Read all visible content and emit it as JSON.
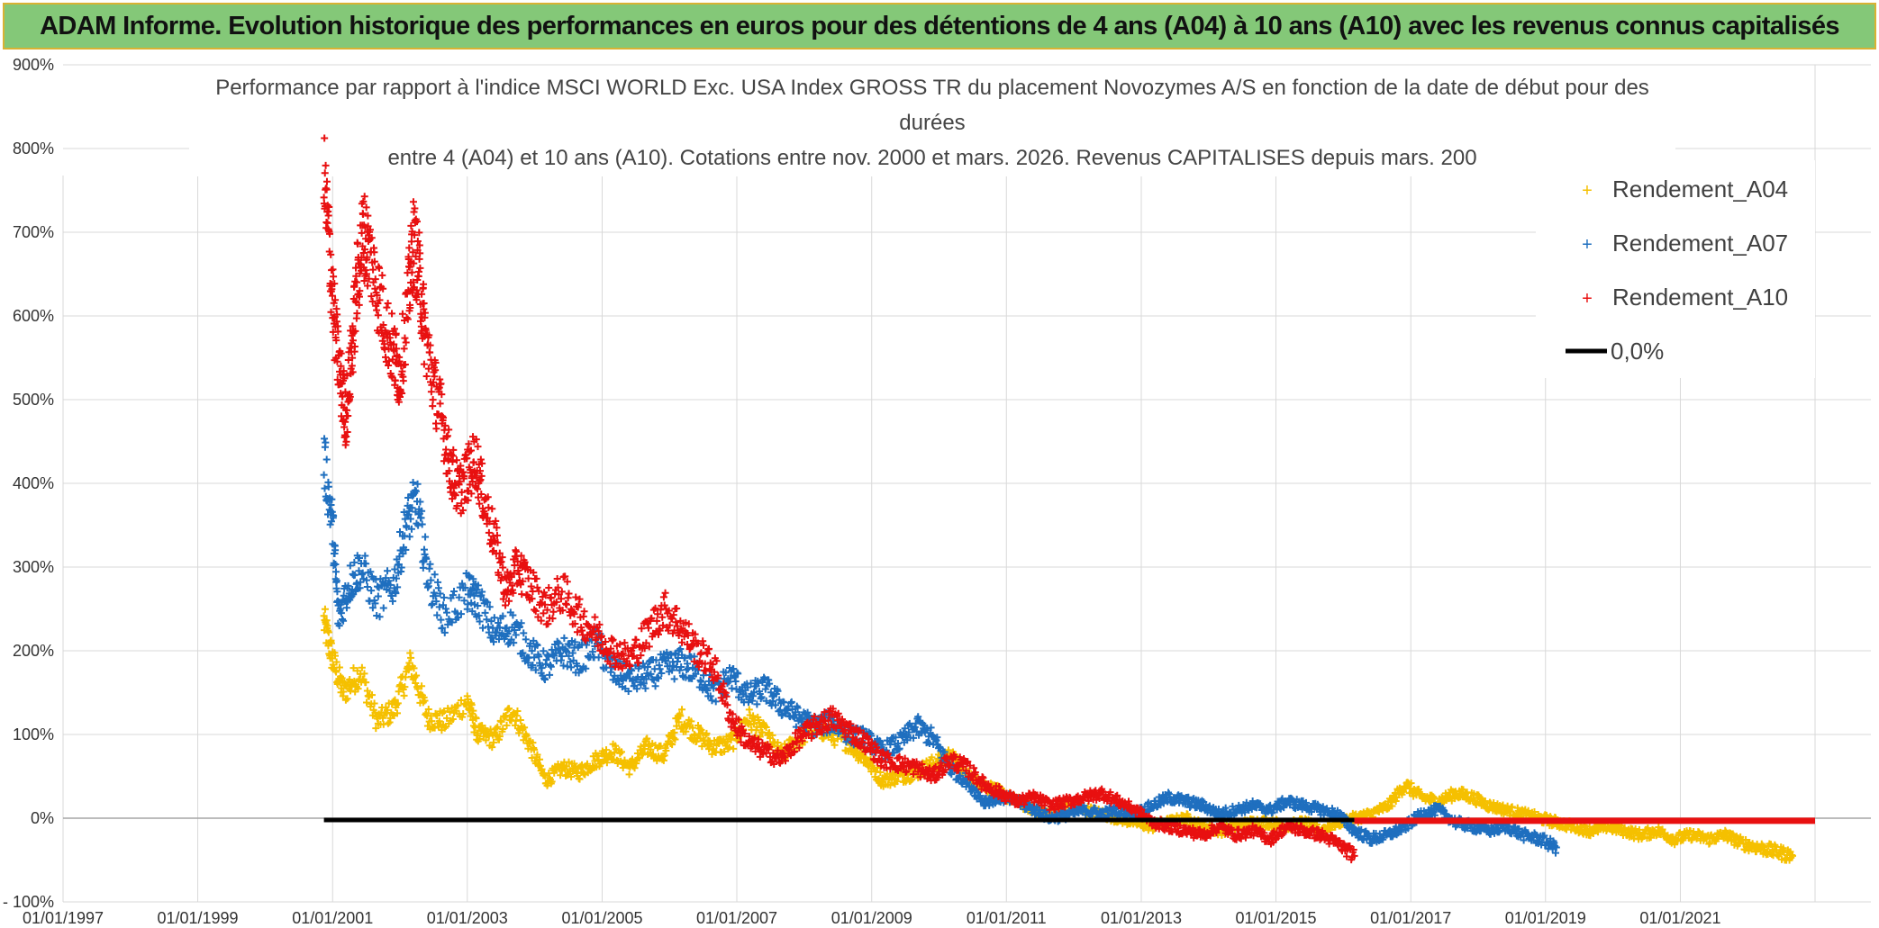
{
  "banner": {
    "title": "ADAM Informe. Evolution historique des performances en euros pour des détentions de 4 ans (A04) à 10 ans (A10) avec les revenus connus capitalisés"
  },
  "colors": {
    "banner_bg": "#84c878",
    "banner_border": "#d9b233",
    "a04": "#f5c000",
    "a07": "#1f6fbf",
    "a10": "#e81010",
    "zero_line": "#000000",
    "grid": "#d9d9d9"
  },
  "chart_data": {
    "type": "scatter",
    "title_lines": [
      "Performance par rapport à l'indice MSCI WORLD Exc. USA Index GROSS TR  du placement Novozymes A/S en fonction de la date de début pour des",
      "durées",
      "entre 4 (A04) et 10 ans (A10). Cotations entre nov. 2000 et mars. 2026. Revenus CAPITALISES depuis mars. 200"
    ],
    "y_axis": {
      "min": -100,
      "max": 900,
      "step": 100,
      "tick_labels": [
        "- 100%",
        "0%",
        "100%",
        "200%",
        "300%",
        "400%",
        "500%",
        "600%",
        "700%",
        "800%",
        "900%"
      ]
    },
    "x_axis": {
      "min": "1997-01-01",
      "max": "2023-01-01",
      "tick_labels": [
        "01/01/1997",
        "01/01/1999",
        "01/01/2001",
        "01/01/2003",
        "01/01/2005",
        "01/01/2007",
        "01/01/2009",
        "01/01/2011",
        "01/01/2013",
        "01/01/2015",
        "01/01/2017",
        "01/01/2019",
        "01/01/2021"
      ]
    },
    "grid": true,
    "legend_position": "right",
    "legend": [
      {
        "label": "Rendement_A04",
        "marker": "plus",
        "color": "#f5c000"
      },
      {
        "label": "Rendement_A07",
        "marker": "plus",
        "color": "#1f6fbf"
      },
      {
        "label": "Rendement_A10",
        "marker": "plus",
        "color": "#e81010"
      },
      {
        "label": "0,0%",
        "marker": "line",
        "color": "#000000"
      }
    ],
    "series": [
      {
        "name": "Rendement_A04",
        "color": "#f5c000",
        "points": [
          [
            "2000-11-15",
            235
          ],
          [
            "2001-01-01",
            190
          ],
          [
            "2001-03-01",
            150
          ],
          [
            "2001-06-01",
            175
          ],
          [
            "2001-09-01",
            115
          ],
          [
            "2001-12-01",
            130
          ],
          [
            "2002-03-01",
            185
          ],
          [
            "2002-06-01",
            120
          ],
          [
            "2002-09-01",
            115
          ],
          [
            "2003-01-01",
            140
          ],
          [
            "2003-03-01",
            100
          ],
          [
            "2003-06-01",
            95
          ],
          [
            "2003-09-01",
            130
          ],
          [
            "2003-12-01",
            90
          ],
          [
            "2004-03-01",
            45
          ],
          [
            "2004-06-01",
            60
          ],
          [
            "2004-09-01",
            55
          ],
          [
            "2004-12-01",
            70
          ],
          [
            "2005-03-01",
            80
          ],
          [
            "2005-06-01",
            60
          ],
          [
            "2005-09-01",
            85
          ],
          [
            "2005-12-01",
            75
          ],
          [
            "2006-03-01",
            120
          ],
          [
            "2006-06-01",
            100
          ],
          [
            "2006-09-01",
            85
          ],
          [
            "2006-12-01",
            90
          ],
          [
            "2007-03-01",
            120
          ],
          [
            "2007-06-01",
            100
          ],
          [
            "2007-09-01",
            75
          ],
          [
            "2007-12-01",
            95
          ],
          [
            "2008-03-01",
            110
          ],
          [
            "2008-06-01",
            100
          ],
          [
            "2008-09-01",
            90
          ],
          [
            "2008-12-01",
            70
          ],
          [
            "2009-03-01",
            45
          ],
          [
            "2009-06-01",
            50
          ],
          [
            "2009-09-01",
            55
          ],
          [
            "2009-12-01",
            65
          ],
          [
            "2010-03-01",
            75
          ],
          [
            "2010-06-01",
            50
          ],
          [
            "2010-09-01",
            40
          ],
          [
            "2010-12-01",
            30
          ],
          [
            "2011-03-01",
            20
          ],
          [
            "2011-06-01",
            10
          ],
          [
            "2011-09-01",
            5
          ],
          [
            "2011-12-01",
            15
          ],
          [
            "2012-03-01",
            10
          ],
          [
            "2012-06-01",
            5
          ],
          [
            "2012-09-01",
            0
          ],
          [
            "2012-12-01",
            -5
          ],
          [
            "2013-03-01",
            -10
          ],
          [
            "2013-06-01",
            -5
          ],
          [
            "2013-09-01",
            0
          ],
          [
            "2013-12-01",
            -10
          ],
          [
            "2014-03-01",
            -15
          ],
          [
            "2014-06-01",
            -10
          ],
          [
            "2014-09-01",
            -5
          ],
          [
            "2014-12-01",
            -5
          ],
          [
            "2015-03-01",
            -10
          ],
          [
            "2015-06-01",
            -5
          ],
          [
            "2015-09-01",
            -15
          ],
          [
            "2015-12-01",
            -5
          ],
          [
            "2016-03-01",
            0
          ],
          [
            "2016-06-01",
            5
          ],
          [
            "2016-09-01",
            15
          ],
          [
            "2016-12-01",
            40
          ],
          [
            "2017-03-01",
            25
          ],
          [
            "2017-06-01",
            20
          ],
          [
            "2017-09-01",
            30
          ],
          [
            "2017-12-01",
            25
          ],
          [
            "2018-03-01",
            15
          ],
          [
            "2018-06-01",
            10
          ],
          [
            "2018-09-01",
            5
          ],
          [
            "2018-12-01",
            0
          ],
          [
            "2019-03-01",
            -5
          ],
          [
            "2019-06-01",
            -10
          ],
          [
            "2019-09-01",
            -15
          ],
          [
            "2019-12-01",
            -10
          ],
          [
            "2020-03-01",
            -15
          ],
          [
            "2020-06-01",
            -20
          ],
          [
            "2020-09-01",
            -15
          ],
          [
            "2020-12-01",
            -25
          ],
          [
            "2021-03-01",
            -20
          ],
          [
            "2021-06-01",
            -25
          ],
          [
            "2021-09-01",
            -20
          ],
          [
            "2021-12-01",
            -30
          ],
          [
            "2022-03-01",
            -35
          ],
          [
            "2022-06-01",
            -40
          ],
          [
            "2022-09-01",
            -45
          ]
        ]
      },
      {
        "name": "Rendement_A07",
        "color": "#1f6fbf",
        "points": [
          [
            "2000-11-15",
            430
          ],
          [
            "2001-01-01",
            350
          ],
          [
            "2001-02-01",
            240
          ],
          [
            "2001-04-01",
            280
          ],
          [
            "2001-06-01",
            300
          ],
          [
            "2001-09-01",
            260
          ],
          [
            "2001-12-01",
            280
          ],
          [
            "2002-02-01",
            350
          ],
          [
            "2002-04-01",
            380
          ],
          [
            "2002-06-01",
            290
          ],
          [
            "2002-09-01",
            240
          ],
          [
            "2003-01-01",
            270
          ],
          [
            "2003-03-01",
            260
          ],
          [
            "2003-06-01",
            220
          ],
          [
            "2003-09-01",
            230
          ],
          [
            "2003-12-01",
            200
          ],
          [
            "2004-03-01",
            180
          ],
          [
            "2004-06-01",
            200
          ],
          [
            "2004-09-01",
            190
          ],
          [
            "2004-12-01",
            210
          ],
          [
            "2005-03-01",
            175
          ],
          [
            "2005-06-01",
            165
          ],
          [
            "2005-09-01",
            170
          ],
          [
            "2005-12-01",
            180
          ],
          [
            "2006-03-01",
            185
          ],
          [
            "2006-06-01",
            175
          ],
          [
            "2006-09-01",
            150
          ],
          [
            "2006-12-01",
            170
          ],
          [
            "2007-03-01",
            145
          ],
          [
            "2007-06-01",
            155
          ],
          [
            "2007-09-01",
            135
          ],
          [
            "2007-12-01",
            120
          ],
          [
            "2008-03-01",
            110
          ],
          [
            "2008-06-01",
            115
          ],
          [
            "2008-09-01",
            100
          ],
          [
            "2008-12-01",
            95
          ],
          [
            "2009-03-01",
            80
          ],
          [
            "2009-06-01",
            90
          ],
          [
            "2009-09-01",
            110
          ],
          [
            "2009-12-01",
            95
          ],
          [
            "2010-03-01",
            60
          ],
          [
            "2010-06-01",
            45
          ],
          [
            "2010-09-01",
            20
          ],
          [
            "2010-12-01",
            25
          ],
          [
            "2011-03-01",
            20
          ],
          [
            "2011-06-01",
            10
          ],
          [
            "2011-09-01",
            0
          ],
          [
            "2011-12-01",
            5
          ],
          [
            "2012-03-01",
            10
          ],
          [
            "2012-06-01",
            5
          ],
          [
            "2012-09-01",
            10
          ],
          [
            "2012-12-01",
            5
          ],
          [
            "2013-03-01",
            15
          ],
          [
            "2013-06-01",
            25
          ],
          [
            "2013-09-01",
            20
          ],
          [
            "2013-12-01",
            15
          ],
          [
            "2014-03-01",
            5
          ],
          [
            "2014-06-01",
            10
          ],
          [
            "2014-09-01",
            15
          ],
          [
            "2014-12-01",
            10
          ],
          [
            "2015-03-01",
            20
          ],
          [
            "2015-06-01",
            15
          ],
          [
            "2015-09-01",
            10
          ],
          [
            "2015-12-01",
            5
          ],
          [
            "2016-03-01",
            -15
          ],
          [
            "2016-06-01",
            -25
          ],
          [
            "2016-09-01",
            -20
          ],
          [
            "2016-12-01",
            -10
          ],
          [
            "2017-03-01",
            5
          ],
          [
            "2017-06-01",
            10
          ],
          [
            "2017-09-01",
            -5
          ],
          [
            "2017-12-01",
            -10
          ],
          [
            "2018-03-01",
            -15
          ],
          [
            "2018-06-01",
            -10
          ],
          [
            "2018-09-01",
            -20
          ],
          [
            "2018-12-01",
            -25
          ],
          [
            "2019-03-01",
            -35
          ]
        ]
      },
      {
        "name": "Rendement_A10",
        "color": "#e81010",
        "points": [
          [
            "2000-11-15",
            765
          ],
          [
            "2000-12-15",
            680
          ],
          [
            "2001-01-15",
            580
          ],
          [
            "2001-02-15",
            520
          ],
          [
            "2001-03-15",
            480
          ],
          [
            "2001-04-15",
            560
          ],
          [
            "2001-05-15",
            640
          ],
          [
            "2001-06-15",
            700
          ],
          [
            "2001-07-15",
            680
          ],
          [
            "2001-09-01",
            630
          ],
          [
            "2001-10-15",
            590
          ],
          [
            "2001-12-01",
            550
          ],
          [
            "2002-01-01",
            530
          ],
          [
            "2002-02-15",
            620
          ],
          [
            "2002-03-15",
            690
          ],
          [
            "2002-04-15",
            650
          ],
          [
            "2002-05-15",
            580
          ],
          [
            "2002-07-01",
            520
          ],
          [
            "2002-08-15",
            480
          ],
          [
            "2002-10-01",
            420
          ],
          [
            "2002-11-15",
            390
          ],
          [
            "2003-01-01",
            410
          ],
          [
            "2003-02-15",
            430
          ],
          [
            "2003-04-01",
            380
          ],
          [
            "2003-06-01",
            330
          ],
          [
            "2003-08-01",
            270
          ],
          [
            "2003-10-01",
            300
          ],
          [
            "2003-12-01",
            280
          ],
          [
            "2004-03-01",
            250
          ],
          [
            "2004-06-01",
            270
          ],
          [
            "2004-09-01",
            240
          ],
          [
            "2004-12-01",
            220
          ],
          [
            "2005-03-01",
            200
          ],
          [
            "2005-06-01",
            190
          ],
          [
            "2005-09-01",
            220
          ],
          [
            "2005-12-01",
            250
          ],
          [
            "2006-03-01",
            230
          ],
          [
            "2006-06-01",
            200
          ],
          [
            "2006-09-01",
            180
          ],
          [
            "2006-12-01",
            120
          ],
          [
            "2007-03-01",
            90
          ],
          [
            "2007-06-01",
            80
          ],
          [
            "2007-09-01",
            70
          ],
          [
            "2007-12-01",
            95
          ],
          [
            "2008-03-01",
            110
          ],
          [
            "2008-06-01",
            120
          ],
          [
            "2008-09-01",
            105
          ],
          [
            "2008-12-01",
            90
          ],
          [
            "2009-03-01",
            70
          ],
          [
            "2009-06-01",
            65
          ],
          [
            "2009-09-01",
            60
          ],
          [
            "2009-12-01",
            50
          ],
          [
            "2010-03-01",
            70
          ],
          [
            "2010-06-01",
            60
          ],
          [
            "2010-09-01",
            40
          ],
          [
            "2010-12-01",
            30
          ],
          [
            "2011-03-01",
            20
          ],
          [
            "2011-06-01",
            25
          ],
          [
            "2011-09-01",
            15
          ],
          [
            "2011-12-01",
            20
          ],
          [
            "2012-03-01",
            25
          ],
          [
            "2012-06-01",
            30
          ],
          [
            "2012-09-01",
            20
          ],
          [
            "2012-12-01",
            10
          ],
          [
            "2013-03-01",
            -5
          ],
          [
            "2013-06-01",
            -10
          ],
          [
            "2013-09-01",
            -15
          ],
          [
            "2013-12-01",
            -20
          ],
          [
            "2014-03-01",
            -10
          ],
          [
            "2014-06-01",
            -20
          ],
          [
            "2014-09-01",
            -15
          ],
          [
            "2014-12-01",
            -25
          ],
          [
            "2015-03-01",
            -10
          ],
          [
            "2015-06-01",
            -15
          ],
          [
            "2015-09-01",
            -20
          ],
          [
            "2015-12-01",
            -30
          ],
          [
            "2016-03-01",
            -45
          ]
        ]
      }
    ],
    "zero_line": {
      "name": "0,0%",
      "value": 0,
      "from": "2000-11-15",
      "to": "2016-03-01"
    },
    "flat_red_line": {
      "value": -1,
      "from": "2016-03-01",
      "to": "2023-01-01",
      "color": "#e81010"
    }
  }
}
